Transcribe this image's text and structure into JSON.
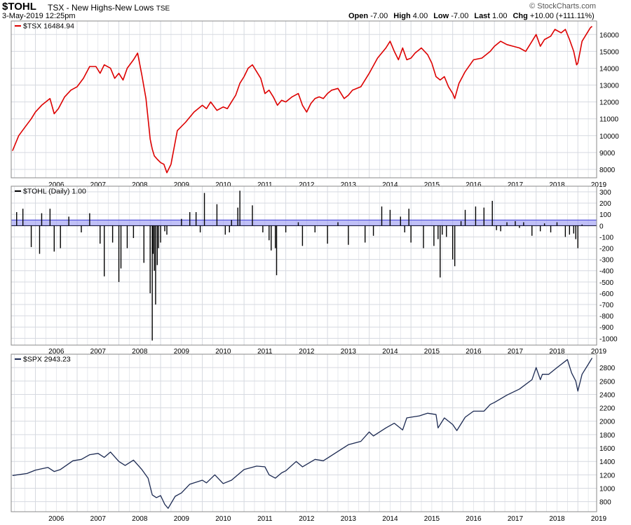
{
  "header": {
    "symbol": "$TOHL",
    "description": "TSX - New Highs-New Lows",
    "exchange": "TSE",
    "brand": "© StockCharts.com",
    "datetime": "3-May-2019 12:25pm",
    "quote": {
      "open_label": "Open",
      "open": "-7.00",
      "high_label": "High",
      "high": "4.00",
      "low_label": "Low",
      "low": "-7.00",
      "last_label": "Last",
      "last": "1.00",
      "chg_label": "Chg",
      "chg": "+10.00 (+111.11%)"
    }
  },
  "colors": {
    "tsx_line": "#dd0000",
    "tohl_line": "#000000",
    "spx_line": "#1c2a52",
    "band_fill": "#8d8df0",
    "band_line": "#3b3bd6",
    "grid": "#d6d9e0"
  },
  "chart_data": [
    {
      "type": "line",
      "panel": "top",
      "legend": "$TSX 16484.94",
      "series": [
        {
          "name": "$TSX",
          "last_value": 16484.94,
          "x": [
            2005.45,
            2005.6,
            2005.75,
            2005.9,
            2006.0,
            2006.15,
            2006.35,
            2006.45,
            2006.55,
            2006.7,
            2006.85,
            2007.0,
            2007.15,
            2007.3,
            2007.45,
            2007.55,
            2007.65,
            2007.8,
            2007.9,
            2008.0,
            2008.1,
            2008.2,
            2008.35,
            2008.45,
            2008.55,
            2008.65,
            2008.75,
            2008.8,
            2008.85,
            2008.92,
            2009.0,
            2009.08,
            2009.15,
            2009.25,
            2009.4,
            2009.6,
            2009.8,
            2010.0,
            2010.1,
            2010.2,
            2010.35,
            2010.5,
            2010.6,
            2010.7,
            2010.8,
            2010.9,
            2011.0,
            2011.1,
            2011.2,
            2011.3,
            2011.4,
            2011.5,
            2011.6,
            2011.7,
            2011.8,
            2011.9,
            2012.0,
            2012.15,
            2012.3,
            2012.4,
            2012.5,
            2012.6,
            2012.7,
            2012.8,
            2012.9,
            2013.0,
            2013.1,
            2013.25,
            2013.4,
            2013.5,
            2013.6,
            2013.8,
            2014.0,
            2014.2,
            2014.4,
            2014.5,
            2014.6,
            2014.7,
            2014.8,
            2014.9,
            2015.0,
            2015.1,
            2015.25,
            2015.4,
            2015.5,
            2015.6,
            2015.7,
            2015.8,
            2015.9,
            2016.0,
            2016.05,
            2016.15,
            2016.3,
            2016.5,
            2016.7,
            2016.9,
            2017.0,
            2017.15,
            2017.3,
            2017.45,
            2017.6,
            2017.75,
            2017.9,
            2018.0,
            2018.1,
            2018.2,
            2018.35,
            2018.45,
            2018.6,
            2018.7,
            2018.8,
            2018.9,
            2018.97,
            2019.0,
            2019.1,
            2019.2,
            2019.3,
            2019.34
          ],
          "y": [
            9100,
            10000,
            10500,
            11000,
            11400,
            11800,
            12200,
            11300,
            11600,
            12300,
            12700,
            12900,
            13400,
            14100,
            14100,
            13700,
            14200,
            14000,
            13400,
            13700,
            13300,
            14000,
            14500,
            14900,
            13600,
            12200,
            9800,
            9200,
            8800,
            8600,
            8400,
            8300,
            7800,
            8300,
            10300,
            10800,
            11400,
            11800,
            11600,
            12000,
            11500,
            11700,
            11600,
            12000,
            12400,
            13100,
            13500,
            14000,
            14200,
            13800,
            13400,
            12500,
            12700,
            12300,
            11800,
            12100,
            12000,
            12300,
            12500,
            11800,
            11400,
            11900,
            12200,
            12300,
            12200,
            12500,
            12700,
            12800,
            12200,
            12400,
            12700,
            12900,
            13700,
            14600,
            15200,
            15600,
            15000,
            14500,
            15200,
            14500,
            14600,
            14900,
            15200,
            14800,
            14300,
            13500,
            13300,
            13500,
            12900,
            12500,
            12200,
            13100,
            13800,
            14500,
            14600,
            15000,
            15300,
            15600,
            15400,
            15300,
            15200,
            15000,
            15600,
            16000,
            15300,
            15700,
            15900,
            16300,
            16100,
            16300,
            15700,
            15000,
            14200,
            14300,
            15600,
            16000,
            16400,
            16484.94
          ]
        }
      ],
      "x_ticks": [
        "2006",
        "2007",
        "2008",
        "2009",
        "2010",
        "2011",
        "2012",
        "2013",
        "2014",
        "2015",
        "2016",
        "2017",
        "2018",
        "2019"
      ],
      "y_ticks": [
        8000,
        9000,
        10000,
        11000,
        12000,
        13000,
        14000,
        15000,
        16000
      ],
      "ylim": [
        7500,
        16800
      ]
    },
    {
      "type": "bar",
      "panel": "middle",
      "legend": "$TOHL (Daily) 1.00",
      "series": [
        {
          "name": "$TOHL",
          "last_value": 1.0,
          "x": [
            2005.55,
            2005.7,
            2005.9,
            2006.1,
            2006.15,
            2006.35,
            2006.45,
            2006.6,
            2006.8,
            2007.1,
            2007.3,
            2007.55,
            2007.65,
            2007.85,
            2008.0,
            2008.05,
            2008.2,
            2008.35,
            2008.6,
            2008.75,
            2008.8,
            2008.82,
            2008.85,
            2008.88,
            2008.92,
            2008.95,
            2009.0,
            2009.1,
            2009.15,
            2009.5,
            2009.7,
            2009.85,
            2009.95,
            2010.05,
            2010.35,
            2010.55,
            2010.65,
            2010.7,
            2010.85,
            2010.9,
            2011.2,
            2011.45,
            2011.6,
            2011.65,
            2011.75,
            2011.78,
            2012.0,
            2012.3,
            2012.4,
            2012.7,
            2013.0,
            2013.25,
            2013.5,
            2013.9,
            2014.1,
            2014.3,
            2014.5,
            2014.75,
            2014.85,
            2014.95,
            2015.0,
            2015.3,
            2015.55,
            2015.65,
            2015.7,
            2015.75,
            2015.85,
            2016.0,
            2016.05,
            2016.2,
            2016.3,
            2016.55,
            2016.75,
            2016.95,
            2017.05,
            2017.15,
            2017.3,
            2017.5,
            2017.6,
            2017.7,
            2017.9,
            2018.1,
            2018.2,
            2018.35,
            2018.5,
            2018.7,
            2018.8,
            2018.9,
            2018.95,
            2019.0,
            2019.1,
            2019.25
          ],
          "values": [
            120,
            150,
            -190,
            -250,
            110,
            150,
            -230,
            -200,
            80,
            -60,
            110,
            -160,
            -450,
            -150,
            -500,
            -380,
            -200,
            -110,
            -330,
            -600,
            -1020,
            -250,
            -400,
            -700,
            -350,
            -200,
            -150,
            -50,
            -80,
            60,
            120,
            120,
            -60,
            290,
            190,
            -80,
            -60,
            50,
            160,
            310,
            180,
            -60,
            -130,
            -220,
            -200,
            -440,
            -60,
            30,
            -180,
            -60,
            -160,
            30,
            -170,
            -150,
            -90,
            170,
            140,
            80,
            -60,
            150,
            -150,
            -200,
            -180,
            -120,
            -460,
            -80,
            -100,
            -300,
            -360,
            40,
            140,
            170,
            160,
            220,
            -40,
            -50,
            30,
            40,
            -20,
            30,
            -90,
            -50,
            20,
            -60,
            30,
            -100,
            -80,
            -70,
            -120,
            -200,
            10,
            1
          ]
        }
      ],
      "band": [
        0,
        50
      ],
      "x_ticks": [
        "2006",
        "2007",
        "2008",
        "2009",
        "2010",
        "2011",
        "2012",
        "2013",
        "2014",
        "2015",
        "2016",
        "2017",
        "2018",
        "2019"
      ],
      "y_ticks": [
        300,
        200,
        100,
        0,
        -100,
        -200,
        -300,
        -400,
        -500,
        -600,
        -700,
        -800,
        -900,
        -1000
      ],
      "ylim": [
        -1060,
        350
      ]
    },
    {
      "type": "line",
      "panel": "bottom",
      "legend": "$SPX 2943.23",
      "series": [
        {
          "name": "$SPX",
          "last_value": 2943.23,
          "x": [
            2005.45,
            2005.8,
            2006.0,
            2006.3,
            2006.45,
            2006.6,
            2006.9,
            2007.1,
            2007.3,
            2007.5,
            2007.65,
            2007.8,
            2008.0,
            2008.15,
            2008.35,
            2008.55,
            2008.7,
            2008.8,
            2008.9,
            2009.0,
            2009.1,
            2009.18,
            2009.35,
            2009.5,
            2009.7,
            2010.0,
            2010.1,
            2010.3,
            2010.5,
            2010.7,
            2011.0,
            2011.3,
            2011.5,
            2011.6,
            2011.75,
            2011.9,
            2012.0,
            2012.25,
            2012.4,
            2012.7,
            2012.9,
            2013.0,
            2013.3,
            2013.5,
            2013.8,
            2014.0,
            2014.1,
            2014.4,
            2014.6,
            2014.8,
            2014.9,
            2015.0,
            2015.2,
            2015.4,
            2015.6,
            2015.65,
            2015.8,
            2016.0,
            2016.1,
            2016.3,
            2016.5,
            2016.75,
            2016.9,
            2017.0,
            2017.3,
            2017.6,
            2017.9,
            2018.0,
            2018.1,
            2018.15,
            2018.3,
            2018.5,
            2018.75,
            2018.85,
            2018.95,
            2019.0,
            2019.1,
            2019.25,
            2019.34
          ],
          "y": [
            1190,
            1220,
            1270,
            1310,
            1250,
            1280,
            1410,
            1430,
            1500,
            1520,
            1460,
            1540,
            1400,
            1340,
            1420,
            1280,
            1150,
            900,
            860,
            890,
            760,
            700,
            880,
            930,
            1060,
            1120,
            1080,
            1200,
            1070,
            1120,
            1280,
            1330,
            1320,
            1200,
            1150,
            1230,
            1260,
            1400,
            1320,
            1430,
            1410,
            1450,
            1570,
            1650,
            1700,
            1840,
            1780,
            1900,
            1970,
            1870,
            2050,
            2060,
            2080,
            2120,
            2100,
            1900,
            2050,
            1950,
            1860,
            2060,
            2150,
            2150,
            2250,
            2280,
            2390,
            2480,
            2620,
            2800,
            2620,
            2700,
            2700,
            2800,
            2920,
            2720,
            2600,
            2450,
            2700,
            2850,
            2943.23
          ]
        }
      ],
      "x_ticks": [
        "2006",
        "2007",
        "2008",
        "2009",
        "2010",
        "2011",
        "2012",
        "2013",
        "2014",
        "2015",
        "2016",
        "2017",
        "2018",
        "2019"
      ],
      "y_ticks": [
        800,
        1000,
        1200,
        1400,
        1600,
        1800,
        2000,
        2200,
        2400,
        2600,
        2800
      ],
      "ylim": [
        650,
        3000
      ]
    }
  ]
}
